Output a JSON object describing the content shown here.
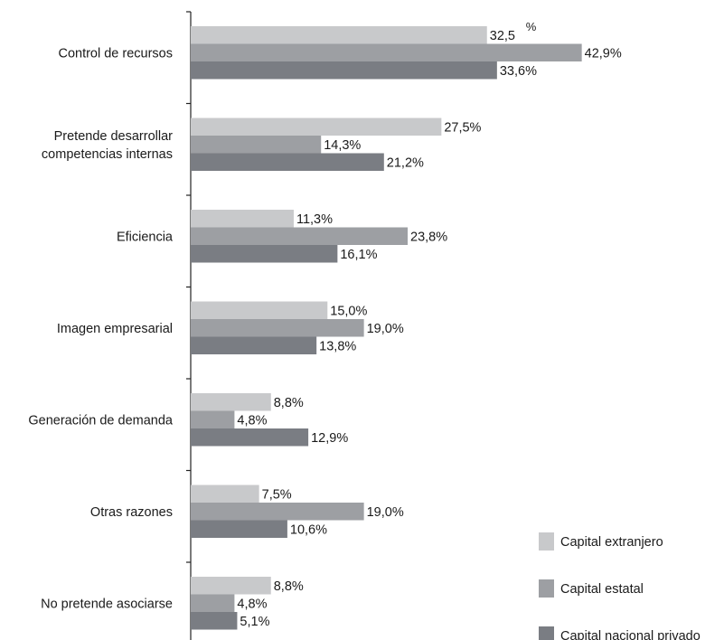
{
  "chart_data": {
    "type": "bar",
    "orientation": "horizontal",
    "unit_annotation": "%",
    "categories": [
      [
        "Control de recursos"
      ],
      [
        "Pretende desarrollar",
        "competencias internas"
      ],
      [
        "Eficiencia"
      ],
      [
        "Imagen empresarial"
      ],
      [
        "Generación de demanda"
      ],
      [
        "Otras razones"
      ],
      [
        "No pretende asociarse"
      ]
    ],
    "series": [
      {
        "name": "Capital extranjero",
        "color": "#c8c9cb",
        "values": [
          32.5,
          27.5,
          11.3,
          15.0,
          8.8,
          7.5,
          8.8
        ],
        "labels": [
          "32,5",
          "27,5%",
          "11,3%",
          "15,0%",
          "8,8%",
          "7,5%",
          "8,8%"
        ]
      },
      {
        "name": "Capital estatal",
        "color": "#9d9fa3",
        "values": [
          42.9,
          14.3,
          23.8,
          19.0,
          4.8,
          19.0,
          4.8
        ],
        "labels": [
          "42,9%",
          "14,3%",
          "23,8%",
          "19,0%",
          "4,8%",
          "19,0%",
          "4,8%"
        ]
      },
      {
        "name": "Capital nacional privado",
        "color": "#7a7d83",
        "values": [
          33.6,
          21.2,
          16.1,
          13.8,
          12.9,
          10.6,
          5.1
        ],
        "labels": [
          "33,6%",
          "21,2%",
          "16,1%",
          "13,8%",
          "12,9%",
          "10,6%",
          "5,1%"
        ]
      }
    ],
    "xlim": [
      0,
      50
    ],
    "grid": false,
    "legend": "bottom-right"
  }
}
